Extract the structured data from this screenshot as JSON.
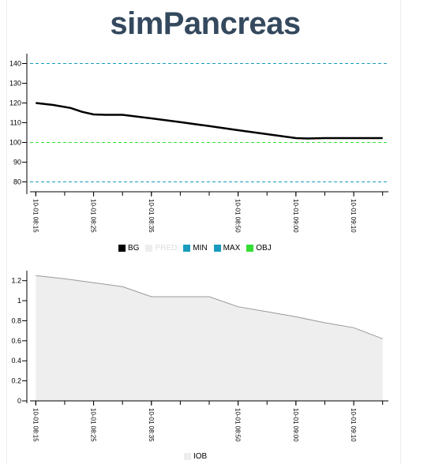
{
  "app": {
    "title": "simPancreas"
  },
  "chart_data": [
    {
      "type": "line",
      "xlabel": "",
      "ylabel": "",
      "ylim": [
        75,
        145
      ],
      "yticks": [
        80,
        90,
        100,
        110,
        120,
        130,
        140
      ],
      "x_tick_labels": [
        "10-01 08:15",
        "10-01 08:25",
        "10-01 08:35",
        "10-01 08:50",
        "10-01 09:00",
        "10-01 09:10"
      ],
      "x_tick_times": [
        "08:15",
        "08:25",
        "08:35",
        "08:50",
        "09:00",
        "09:10"
      ],
      "series": [
        {
          "name": "BG",
          "x": [
            "08:15",
            "08:18",
            "08:21",
            "08:23",
            "08:25",
            "08:27",
            "08:30",
            "08:35",
            "08:40",
            "08:45",
            "08:50",
            "08:55",
            "09:00",
            "09:02",
            "09:05",
            "09:10",
            "09:15"
          ],
          "values": [
            120,
            119,
            117.5,
            115.5,
            114.2,
            114,
            114,
            112.2,
            110.3,
            108.3,
            106.2,
            104.2,
            102.2,
            102,
            102.2,
            102.2,
            102.2
          ],
          "color": "#000000"
        },
        {
          "name": "PRED",
          "x": [],
          "values": [],
          "color": "#eeeeee"
        },
        {
          "name": "MIN",
          "constant": 80,
          "color": "#1a9bbd"
        },
        {
          "name": "MAX",
          "constant": 140,
          "color": "#1a9bbd"
        },
        {
          "name": "OBJ",
          "constant": 100,
          "color": "#33dd33"
        }
      ],
      "legend": "bottom"
    },
    {
      "type": "area",
      "xlabel": "",
      "ylabel": "",
      "ylim": [
        0,
        1.3
      ],
      "yticks": [
        "0",
        "0.2",
        "0.4",
        "0.6",
        "0.8",
        "1",
        "1.2"
      ],
      "x_tick_labels": [
        "10-01 08:15",
        "10-01 08:25",
        "10-01 08:35",
        "10-01 08:50",
        "10-01 09:00",
        "10-01 09:10"
      ],
      "x_tick_times": [
        "08:15",
        "08:25",
        "08:35",
        "08:50",
        "09:00",
        "09:10"
      ],
      "series": [
        {
          "name": "IOB",
          "x": [
            "08:15",
            "08:20",
            "08:25",
            "08:30",
            "08:35",
            "08:45",
            "08:50",
            "08:55",
            "09:00",
            "09:05",
            "09:10",
            "09:15"
          ],
          "values": [
            1.25,
            1.22,
            1.18,
            1.14,
            1.04,
            1.04,
            0.94,
            0.89,
            0.84,
            0.78,
            0.73,
            0.62
          ],
          "color": "#999999",
          "fill": "#eeeeee"
        }
      ],
      "legend": "bottom"
    }
  ]
}
